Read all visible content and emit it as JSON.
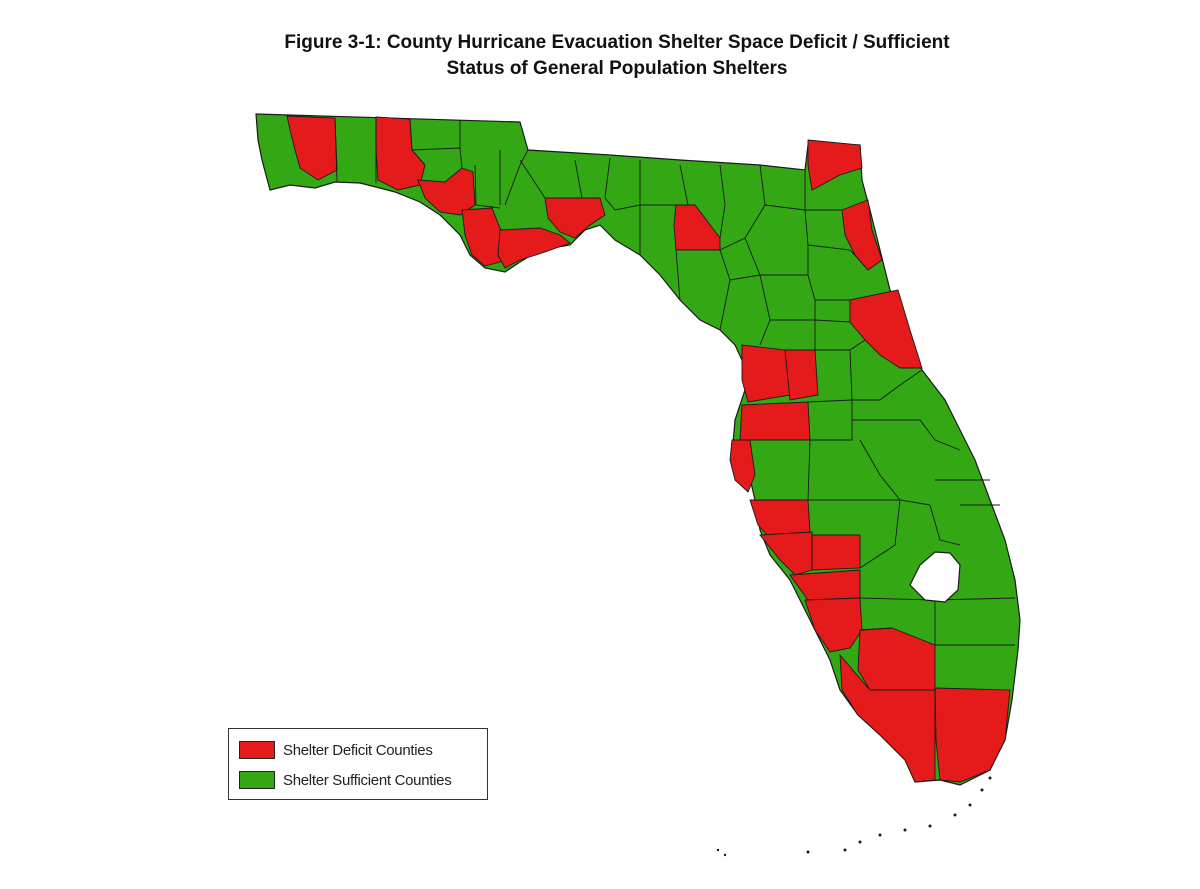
{
  "figure": {
    "title_line1": "Figure 3-1: County Hurricane Evacuation Shelter Space Deficit / Sufficient",
    "title_line2": "Status of General Population Shelters"
  },
  "legend": {
    "deficit_label": "Shelter Deficit Counties",
    "sufficient_label": "Shelter Sufficient Counties"
  },
  "colors": {
    "deficit": "#e51b1b",
    "sufficient": "#33a814",
    "border": "#1a1a1a",
    "lake": "#ffffff"
  },
  "map": {
    "region": "Florida",
    "feature_type": "county"
  }
}
